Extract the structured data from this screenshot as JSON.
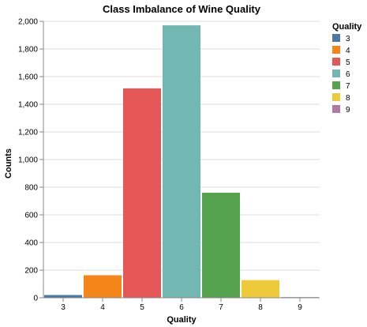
{
  "chart_data": {
    "type": "bar",
    "title": "Class Imbalance of Wine Quality",
    "xlabel": "Quality",
    "ylabel": "Counts",
    "categories": [
      "3",
      "4",
      "5",
      "6",
      "7",
      "8",
      "9"
    ],
    "values": [
      20,
      163,
      1515,
      1971,
      760,
      128,
      5
    ],
    "ylim": [
      0,
      2000
    ],
    "yticks": [
      0,
      200,
      400,
      600,
      800,
      1000,
      1200,
      1400,
      1600,
      1800,
      2000
    ],
    "ytick_labels": [
      "0",
      "200",
      "400",
      "600",
      "800",
      "1,000",
      "1,200",
      "1,400",
      "1,600",
      "1,800",
      "2,000"
    ],
    "grid": "horizontal",
    "legend": {
      "title": "Quality",
      "placement": "right",
      "entries": [
        "3",
        "4",
        "5",
        "6",
        "7",
        "8",
        "9"
      ]
    },
    "colors": [
      "#4c78a8",
      "#f58518",
      "#e45756",
      "#72b7b2",
      "#54a24b",
      "#eeca3b",
      "#b279a2"
    ]
  }
}
